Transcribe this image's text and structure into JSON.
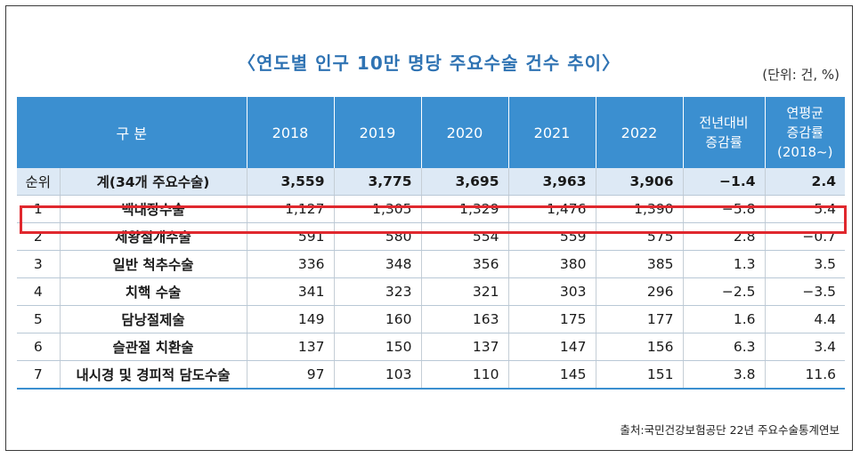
{
  "title": "〈연도별 인구 10만 명당 주요수술 건수 추이〉",
  "unit": "(단위: 건, %)",
  "columns": {
    "category": "구 분",
    "y2018": "2018",
    "y2019": "2019",
    "y2020": "2020",
    "y2021": "2021",
    "y2022": "2022",
    "yoy_line1": "전년대비",
    "yoy_line2": "증감률",
    "avg_line1": "연평균",
    "avg_line2": "증감률",
    "avg_line3": "(2018~)"
  },
  "rows": [
    {
      "rank": "순위",
      "name": "계(34개 주요수술)",
      "v2018": "3,559",
      "v2019": "3,775",
      "v2020": "3,695",
      "v2021": "3,963",
      "v2022": "3,906",
      "yoy": "−1.4",
      "avg": "2.4"
    },
    {
      "rank": "1",
      "name": "백내장수술",
      "v2018": "1,127",
      "v2019": "1,305",
      "v2020": "1,329",
      "v2021": "1,476",
      "v2022": "1,390",
      "yoy": "−5.8",
      "avg": "5.4"
    },
    {
      "rank": "2",
      "name": "제왕절개수술",
      "v2018": "591",
      "v2019": "580",
      "v2020": "554",
      "v2021": "559",
      "v2022": "575",
      "yoy": "2.8",
      "avg": "−0.7"
    },
    {
      "rank": "3",
      "name": "일반 척추수술",
      "v2018": "336",
      "v2019": "348",
      "v2020": "356",
      "v2021": "380",
      "v2022": "385",
      "yoy": "1.3",
      "avg": "3.5"
    },
    {
      "rank": "4",
      "name": "치핵 수술",
      "v2018": "341",
      "v2019": "323",
      "v2020": "321",
      "v2021": "303",
      "v2022": "296",
      "yoy": "−2.5",
      "avg": "−3.5"
    },
    {
      "rank": "5",
      "name": "담낭절제술",
      "v2018": "149",
      "v2019": "160",
      "v2020": "163",
      "v2021": "175",
      "v2022": "177",
      "yoy": "1.6",
      "avg": "4.4"
    },
    {
      "rank": "6",
      "name": "슬관절 치환술",
      "v2018": "137",
      "v2019": "150",
      "v2020": "137",
      "v2021": "147",
      "v2022": "156",
      "yoy": "6.3",
      "avg": "3.4"
    },
    {
      "rank": "7",
      "name": "내시경 및 경피적 담도수술",
      "v2018": "97",
      "v2019": "103",
      "v2020": "110",
      "v2021": "145",
      "v2022": "151",
      "yoy": "3.8",
      "avg": "11.6"
    }
  ],
  "source": "출처:국민건강보험공단 22년 주요수술통계연보",
  "colors": {
    "header_bg": "#3b8fd0",
    "title": "#2f73b3",
    "total_row_bg": "#dde9f5",
    "highlight": "#e0282e"
  }
}
